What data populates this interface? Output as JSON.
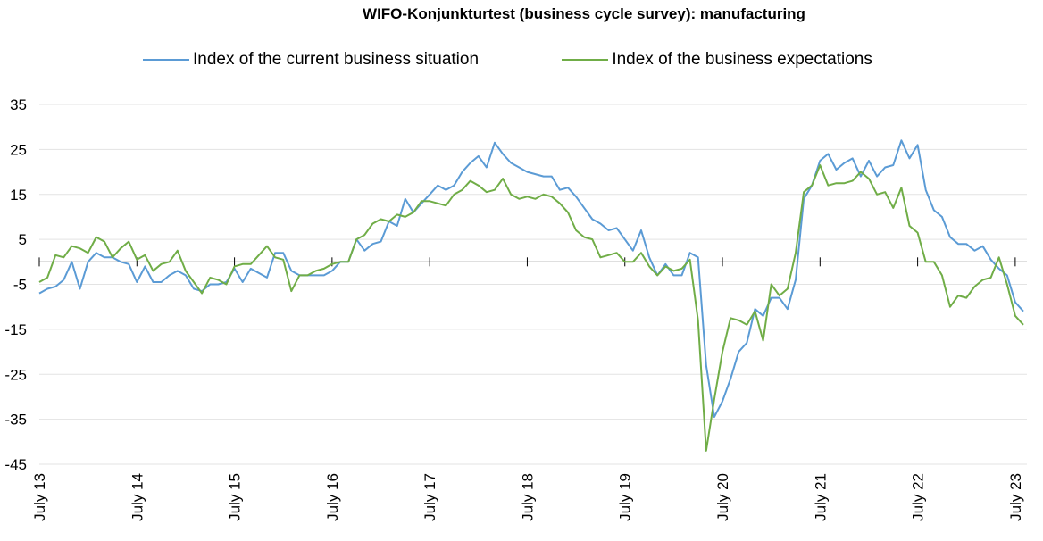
{
  "chart_data": {
    "type": "line",
    "title": "WIFO-Konjunkturtest (business cycle survey): manufacturing",
    "xlabel": "",
    "ylabel": "",
    "ylim": [
      -45,
      35
    ],
    "yticks": [
      35,
      25,
      15,
      5,
      -5,
      -15,
      -25,
      -35,
      -45
    ],
    "ytick_labels": [
      "35",
      "25",
      "15",
      "5",
      "-5",
      "-15",
      "-25",
      "-35",
      "-45"
    ],
    "xtick_labels": [
      "July 13",
      "July 14",
      "July 15",
      "July 16",
      "July 17",
      "July 18",
      "July 19",
      "July 20",
      "July 21",
      "July 22",
      "July 23"
    ],
    "grid": "horizontal",
    "legend_position": "top",
    "x_start": "2013-07",
    "x_end": "2023-07",
    "series": [
      {
        "name": "Index of the current business situation",
        "color": "#5b9bd5",
        "values": [
          -7,
          -6,
          -5.5,
          -4,
          0,
          -6,
          0,
          2,
          1,
          1,
          0,
          -0.5,
          -4.5,
          -1,
          -4.5,
          -4.5,
          -3,
          -2,
          -3,
          -6,
          -6.5,
          -5,
          -5,
          -4.5,
          -1.5,
          -4.5,
          -1.5,
          -2.5,
          -3.5,
          2,
          2,
          -2,
          -3,
          -3,
          -3,
          -3,
          -2,
          0,
          0,
          5,
          2.5,
          4,
          4.5,
          9,
          8,
          14,
          11,
          13,
          15,
          17,
          16,
          17,
          20,
          22,
          23.5,
          21,
          26.5,
          24,
          22,
          21,
          20,
          19.5,
          19,
          19,
          16,
          16.5,
          14.5,
          12,
          9.5,
          8.5,
          7,
          7.5,
          5,
          2.5,
          7,
          1,
          -3,
          -0.5,
          -3,
          -3,
          2,
          1,
          -23,
          -34.5,
          -31,
          -26,
          -20,
          -18,
          -10.5,
          -12,
          -8,
          -8,
          -10.5,
          -4,
          14,
          17,
          22.5,
          24,
          20.5,
          22,
          23,
          19,
          22.5,
          19,
          21,
          21.5,
          27,
          23,
          26,
          16,
          11.5,
          10,
          5.5,
          4,
          4,
          2.5,
          3.5,
          0.5,
          -1.5,
          -3,
          -9,
          -11
        ]
      },
      {
        "name": "Index of the business expectations",
        "color": "#70ad47",
        "values": [
          -4.5,
          -3.5,
          1.5,
          1,
          3.5,
          3,
          2,
          5.5,
          4.5,
          1,
          3,
          4.5,
          0.5,
          1.5,
          -2,
          -0.5,
          0,
          2.5,
          -2,
          -4.5,
          -7,
          -3.5,
          -4,
          -5,
          -1,
          -0.5,
          -0.5,
          1.5,
          3.5,
          1,
          0.5,
          -6.5,
          -3,
          -3,
          -2,
          -1.5,
          -0.5,
          0,
          0,
          5,
          6,
          8.5,
          9.5,
          9,
          10.5,
          10,
          11,
          13.5,
          13.5,
          13,
          12.5,
          15,
          16,
          18,
          17,
          15.5,
          16,
          18.5,
          15,
          14,
          14.5,
          14,
          15,
          14.5,
          13,
          11,
          7,
          5.5,
          5,
          1,
          1.5,
          2,
          0,
          0,
          2,
          -1,
          -3,
          -1,
          -2,
          -1.5,
          0.5,
          -13,
          -42,
          -30.5,
          -20,
          -12.5,
          -13,
          -14,
          -11,
          -17.5,
          -5,
          -7.5,
          -6,
          2,
          15.5,
          17,
          21.5,
          17,
          17.5,
          17.5,
          18,
          20,
          18.5,
          15,
          15.5,
          12,
          16.5,
          8,
          6.5,
          0,
          0,
          -3,
          -10,
          -7.5,
          -8,
          -5.5,
          -4,
          -3.5,
          1,
          -5,
          -12,
          -14
        ]
      }
    ]
  }
}
